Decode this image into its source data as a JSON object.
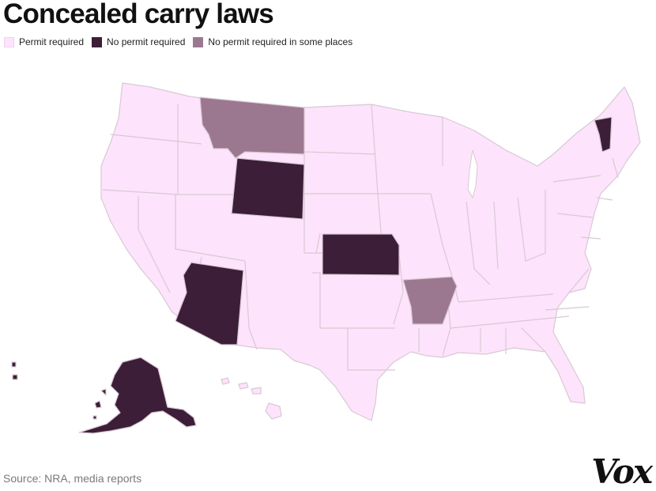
{
  "title": "Concealed carry laws",
  "legend": [
    {
      "label": "Permit required",
      "color": "#fde3fb"
    },
    {
      "label": "No permit required",
      "color": "#3d1e38"
    },
    {
      "label": "No permit required in some places",
      "color": "#9b7890"
    }
  ],
  "colors": {
    "permit": "#fde3fb",
    "no_permit": "#3d1e38",
    "some_places": "#9b7890",
    "border": "#d8c9d4"
  },
  "categories": {
    "no_permit": [
      "Alaska",
      "Arizona",
      "Wyoming",
      "Kansas",
      "Vermont"
    ],
    "some_places": [
      "Montana",
      "Arkansas"
    ],
    "permit": "all other states"
  },
  "source": "Source: NRA, media reports",
  "logo": "Vox"
}
